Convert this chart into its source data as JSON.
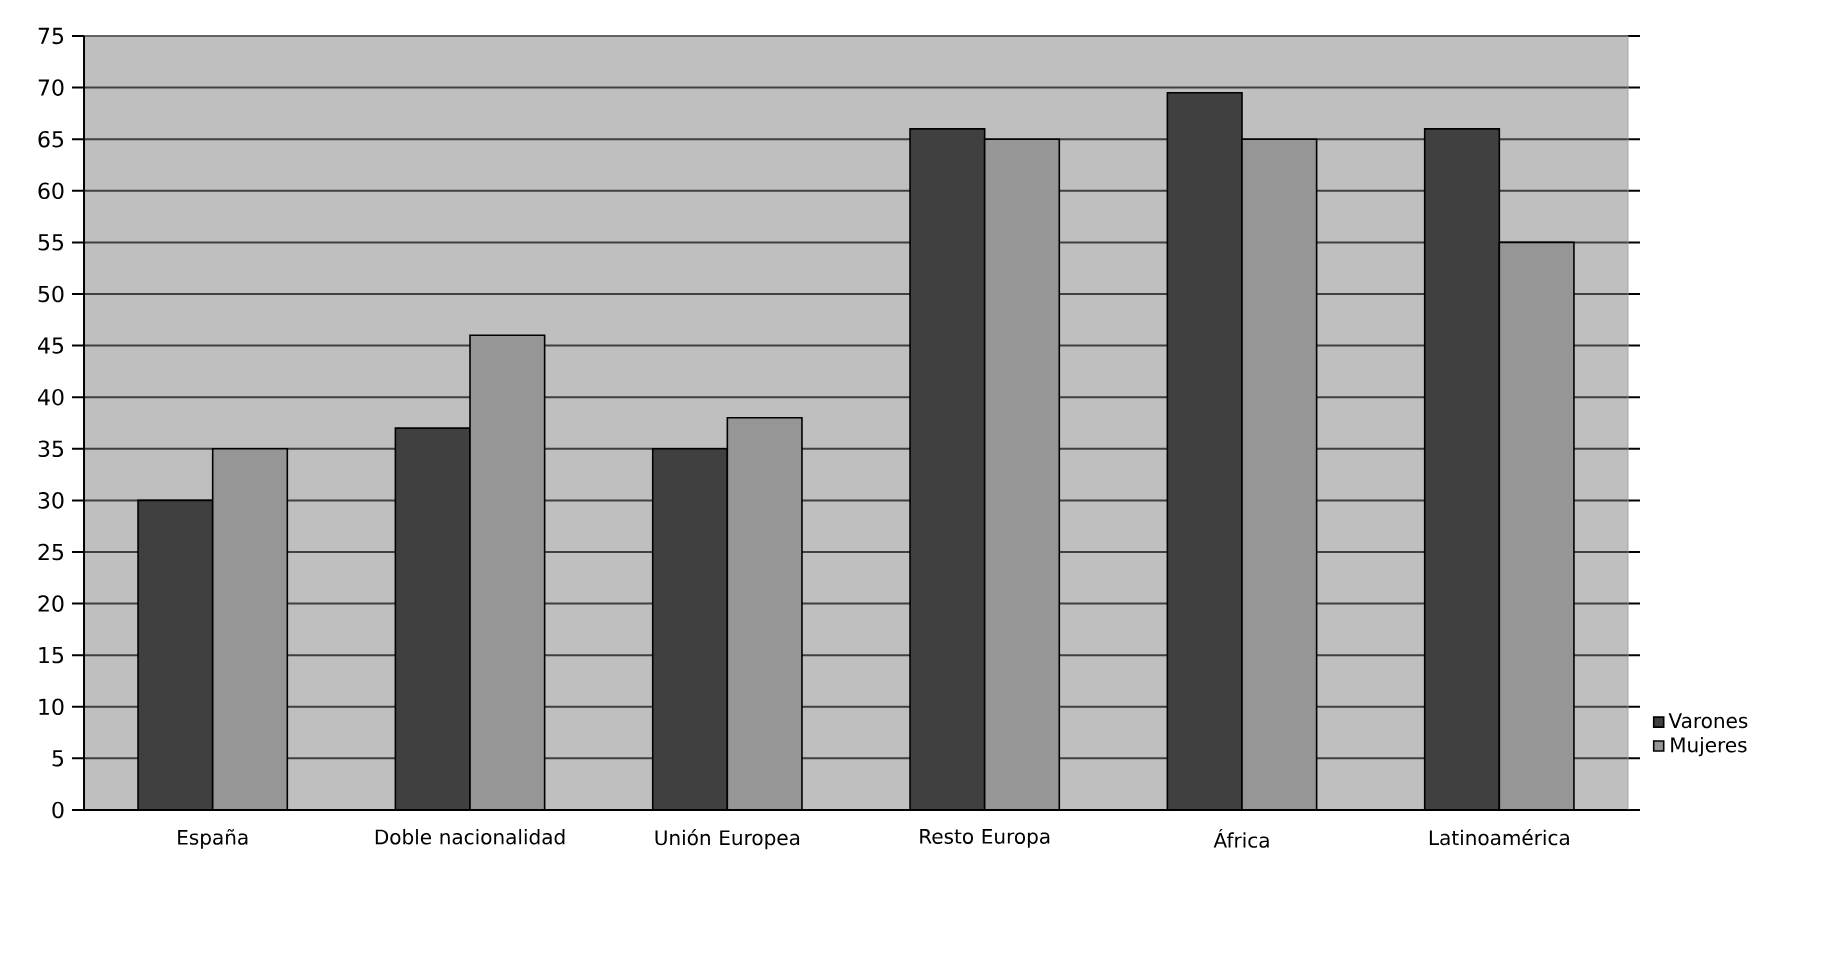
{
  "chart_data": {
    "type": "bar",
    "categories": [
      "España",
      "Doble nacionalidad",
      "Unión Europea",
      "Resto Europa",
      "África",
      "Latinoamérica"
    ],
    "series": [
      {
        "name": "Varones",
        "color": "#404040",
        "values": [
          30,
          37,
          35,
          66,
          69.5,
          66
        ]
      },
      {
        "name": "Mujeres",
        "color": "#969696",
        "values": [
          35,
          46,
          38,
          65,
          65,
          55
        ]
      }
    ],
    "ylim": [
      0,
      75
    ],
    "yticks": [
      0,
      5,
      10,
      15,
      20,
      25,
      30,
      35,
      40,
      45,
      50,
      55,
      60,
      65,
      70,
      75
    ],
    "grid": "y",
    "legend": "right"
  }
}
